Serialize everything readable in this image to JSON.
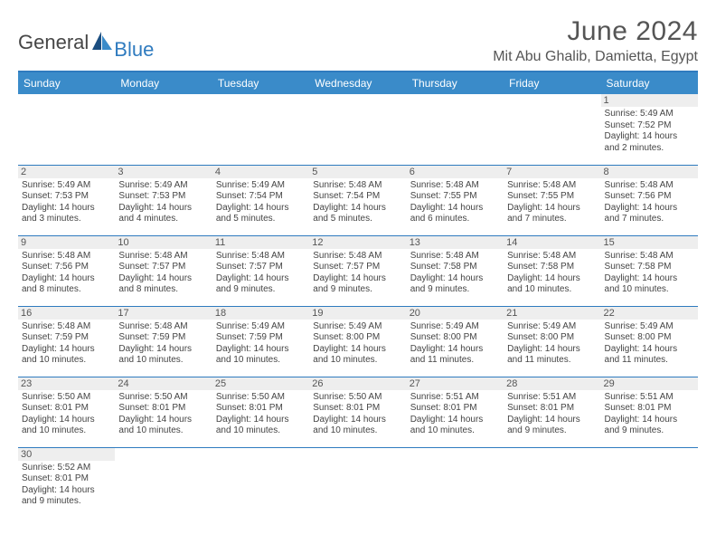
{
  "logo": {
    "part1": "General",
    "part2": "Blue"
  },
  "title": "June 2024",
  "location": "Mit Abu Ghalib, Damietta, Egypt",
  "day_headers": [
    "Sunday",
    "Monday",
    "Tuesday",
    "Wednesday",
    "Thursday",
    "Friday",
    "Saturday"
  ],
  "colors": {
    "header_bg": "#3a8bc9",
    "border": "#2f7bbf",
    "daynum_bg": "#eeeeee",
    "text": "#555555"
  },
  "weeks": [
    [
      null,
      null,
      null,
      null,
      null,
      null,
      {
        "n": "1",
        "sr": "Sunrise: 5:49 AM",
        "ss": "Sunset: 7:52 PM",
        "dl": "Daylight: 14 hours and 2 minutes."
      }
    ],
    [
      {
        "n": "2",
        "sr": "Sunrise: 5:49 AM",
        "ss": "Sunset: 7:53 PM",
        "dl": "Daylight: 14 hours and 3 minutes."
      },
      {
        "n": "3",
        "sr": "Sunrise: 5:49 AM",
        "ss": "Sunset: 7:53 PM",
        "dl": "Daylight: 14 hours and 4 minutes."
      },
      {
        "n": "4",
        "sr": "Sunrise: 5:49 AM",
        "ss": "Sunset: 7:54 PM",
        "dl": "Daylight: 14 hours and 5 minutes."
      },
      {
        "n": "5",
        "sr": "Sunrise: 5:48 AM",
        "ss": "Sunset: 7:54 PM",
        "dl": "Daylight: 14 hours and 5 minutes."
      },
      {
        "n": "6",
        "sr": "Sunrise: 5:48 AM",
        "ss": "Sunset: 7:55 PM",
        "dl": "Daylight: 14 hours and 6 minutes."
      },
      {
        "n": "7",
        "sr": "Sunrise: 5:48 AM",
        "ss": "Sunset: 7:55 PM",
        "dl": "Daylight: 14 hours and 7 minutes."
      },
      {
        "n": "8",
        "sr": "Sunrise: 5:48 AM",
        "ss": "Sunset: 7:56 PM",
        "dl": "Daylight: 14 hours and 7 minutes."
      }
    ],
    [
      {
        "n": "9",
        "sr": "Sunrise: 5:48 AM",
        "ss": "Sunset: 7:56 PM",
        "dl": "Daylight: 14 hours and 8 minutes."
      },
      {
        "n": "10",
        "sr": "Sunrise: 5:48 AM",
        "ss": "Sunset: 7:57 PM",
        "dl": "Daylight: 14 hours and 8 minutes."
      },
      {
        "n": "11",
        "sr": "Sunrise: 5:48 AM",
        "ss": "Sunset: 7:57 PM",
        "dl": "Daylight: 14 hours and 9 minutes."
      },
      {
        "n": "12",
        "sr": "Sunrise: 5:48 AM",
        "ss": "Sunset: 7:57 PM",
        "dl": "Daylight: 14 hours and 9 minutes."
      },
      {
        "n": "13",
        "sr": "Sunrise: 5:48 AM",
        "ss": "Sunset: 7:58 PM",
        "dl": "Daylight: 14 hours and 9 minutes."
      },
      {
        "n": "14",
        "sr": "Sunrise: 5:48 AM",
        "ss": "Sunset: 7:58 PM",
        "dl": "Daylight: 14 hours and 10 minutes."
      },
      {
        "n": "15",
        "sr": "Sunrise: 5:48 AM",
        "ss": "Sunset: 7:58 PM",
        "dl": "Daylight: 14 hours and 10 minutes."
      }
    ],
    [
      {
        "n": "16",
        "sr": "Sunrise: 5:48 AM",
        "ss": "Sunset: 7:59 PM",
        "dl": "Daylight: 14 hours and 10 minutes."
      },
      {
        "n": "17",
        "sr": "Sunrise: 5:48 AM",
        "ss": "Sunset: 7:59 PM",
        "dl": "Daylight: 14 hours and 10 minutes."
      },
      {
        "n": "18",
        "sr": "Sunrise: 5:49 AM",
        "ss": "Sunset: 7:59 PM",
        "dl": "Daylight: 14 hours and 10 minutes."
      },
      {
        "n": "19",
        "sr": "Sunrise: 5:49 AM",
        "ss": "Sunset: 8:00 PM",
        "dl": "Daylight: 14 hours and 10 minutes."
      },
      {
        "n": "20",
        "sr": "Sunrise: 5:49 AM",
        "ss": "Sunset: 8:00 PM",
        "dl": "Daylight: 14 hours and 11 minutes."
      },
      {
        "n": "21",
        "sr": "Sunrise: 5:49 AM",
        "ss": "Sunset: 8:00 PM",
        "dl": "Daylight: 14 hours and 11 minutes."
      },
      {
        "n": "22",
        "sr": "Sunrise: 5:49 AM",
        "ss": "Sunset: 8:00 PM",
        "dl": "Daylight: 14 hours and 11 minutes."
      }
    ],
    [
      {
        "n": "23",
        "sr": "Sunrise: 5:50 AM",
        "ss": "Sunset: 8:01 PM",
        "dl": "Daylight: 14 hours and 10 minutes."
      },
      {
        "n": "24",
        "sr": "Sunrise: 5:50 AM",
        "ss": "Sunset: 8:01 PM",
        "dl": "Daylight: 14 hours and 10 minutes."
      },
      {
        "n": "25",
        "sr": "Sunrise: 5:50 AM",
        "ss": "Sunset: 8:01 PM",
        "dl": "Daylight: 14 hours and 10 minutes."
      },
      {
        "n": "26",
        "sr": "Sunrise: 5:50 AM",
        "ss": "Sunset: 8:01 PM",
        "dl": "Daylight: 14 hours and 10 minutes."
      },
      {
        "n": "27",
        "sr": "Sunrise: 5:51 AM",
        "ss": "Sunset: 8:01 PM",
        "dl": "Daylight: 14 hours and 10 minutes."
      },
      {
        "n": "28",
        "sr": "Sunrise: 5:51 AM",
        "ss": "Sunset: 8:01 PM",
        "dl": "Daylight: 14 hours and 9 minutes."
      },
      {
        "n": "29",
        "sr": "Sunrise: 5:51 AM",
        "ss": "Sunset: 8:01 PM",
        "dl": "Daylight: 14 hours and 9 minutes."
      }
    ],
    [
      {
        "n": "30",
        "sr": "Sunrise: 5:52 AM",
        "ss": "Sunset: 8:01 PM",
        "dl": "Daylight: 14 hours and 9 minutes."
      },
      null,
      null,
      null,
      null,
      null,
      null
    ]
  ]
}
